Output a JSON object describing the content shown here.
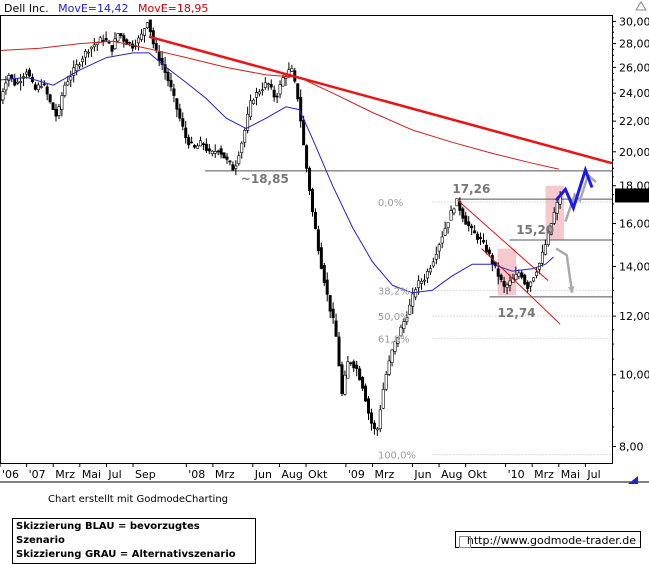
{
  "chart_data": {
    "type": "candlestick",
    "title_parts": [
      {
        "text": "Dell Inc.",
        "color": "#000000"
      },
      {
        "text": "MovE=14,42",
        "color": "#2222cc"
      },
      {
        "text": "MovE=18,95",
        "color": "#cc0000"
      }
    ],
    "x_ticks": [
      {
        "label": "'06",
        "t": 0
      },
      {
        "label": "'07",
        "t": 2
      },
      {
        "label": "Mrz",
        "t": 4
      },
      {
        "label": "Mai",
        "t": 6
      },
      {
        "label": "Jul",
        "t": 8
      },
      {
        "label": "Sep",
        "t": 10
      },
      {
        "label": "'08",
        "t": 14
      },
      {
        "label": "Mrz",
        "t": 16
      },
      {
        "label": "Jun",
        "t": 19
      },
      {
        "label": "Aug",
        "t": 21
      },
      {
        "label": "Okt",
        "t": 23
      },
      {
        "label": "'09",
        "t": 26
      },
      {
        "label": "Mrz",
        "t": 28
      },
      {
        "label": "Jun",
        "t": 31
      },
      {
        "label": "Aug",
        "t": 33
      },
      {
        "label": "Okt",
        "t": 35
      },
      {
        "label": "'10",
        "t": 38
      },
      {
        "label": "Mrz",
        "t": 40
      },
      {
        "label": "Mai",
        "t": 42
      },
      {
        "label": "Jul",
        "t": 44
      }
    ],
    "y_ticks": [
      "8,00",
      "10,00",
      "12,00",
      "14,00",
      "16,00",
      "18,00",
      "20,00",
      "22,00",
      "24,00",
      "26,00",
      "28,00",
      "30,00"
    ],
    "y_tick_values": [
      8,
      10,
      12,
      14,
      16,
      18,
      20,
      22,
      24,
      26,
      28,
      30
    ],
    "ylim": [
      7.6,
      30.6
    ],
    "y_scale": "log",
    "last_price": "17,46",
    "price_path": [
      [
        0,
        23.5
      ],
      [
        0.6,
        25.5
      ],
      [
        1.2,
        24.6
      ],
      [
        2,
        25.8
      ],
      [
        2.6,
        24.2
      ],
      [
        3.2,
        24.8
      ],
      [
        3.8,
        23.2
      ],
      [
        4.3,
        22.2
      ],
      [
        4.8,
        24.5
      ],
      [
        5.4,
        25.5
      ],
      [
        6,
        26.5
      ],
      [
        6.6,
        27.5
      ],
      [
        7.2,
        28
      ],
      [
        7.8,
        28.5
      ],
      [
        8.4,
        27.5
      ],
      [
        8.9,
        29
      ],
      [
        9.4,
        28.2
      ],
      [
        10,
        27.8
      ],
      [
        10.6,
        28.6
      ],
      [
        11.1,
        30.2
      ],
      [
        11.6,
        27.6
      ],
      [
        12.2,
        26.2
      ],
      [
        12.8,
        24.5
      ],
      [
        13.4,
        22.5
      ],
      [
        14,
        20.8
      ],
      [
        14.6,
        20.2
      ],
      [
        15.2,
        20.6
      ],
      [
        15.8,
        19.8
      ],
      [
        16.4,
        20.2
      ],
      [
        17,
        19.5
      ],
      [
        17.6,
        18.9
      ],
      [
        18.3,
        21
      ],
      [
        18.9,
        23.5
      ],
      [
        19.5,
        24.2
      ],
      [
        20.1,
        24.8
      ],
      [
        20.7,
        23.6
      ],
      [
        21.3,
        25.2
      ],
      [
        21.9,
        25.9
      ],
      [
        22.4,
        23.6
      ],
      [
        22.9,
        19.8
      ],
      [
        23.5,
        16.5
      ],
      [
        24.1,
        14.2
      ],
      [
        24.7,
        12.5
      ],
      [
        25.2,
        11.5
      ],
      [
        25.7,
        9.4
      ],
      [
        26.2,
        10.5
      ],
      [
        26.8,
        10.2
      ],
      [
        27.3,
        9.6
      ],
      [
        27.8,
        8.7
      ],
      [
        28.3,
        8.3
      ],
      [
        28.9,
        9.8
      ],
      [
        29.5,
        10.8
      ],
      [
        30.1,
        11.5
      ],
      [
        30.7,
        12.2
      ],
      [
        31.3,
        13.2
      ],
      [
        31.9,
        13.5
      ],
      [
        32.5,
        14.2
      ],
      [
        33.1,
        15.2
      ],
      [
        33.7,
        16.2
      ],
      [
        34.3,
        17.2
      ],
      [
        34.9,
        16.2
      ],
      [
        35.5,
        15.6
      ],
      [
        36.1,
        15.2
      ],
      [
        36.7,
        14.6
      ],
      [
        37.3,
        13.8
      ],
      [
        37.9,
        13.1
      ],
      [
        38.5,
        13.4
      ],
      [
        39.1,
        13.8
      ],
      [
        39.6,
        13.1
      ],
      [
        40.1,
        13.6
      ],
      [
        40.6,
        14.2
      ],
      [
        41.1,
        15.2
      ],
      [
        41.6,
        16.4
      ],
      [
        42.1,
        17.46
      ]
    ],
    "ema_short": [
      [
        0,
        25
      ],
      [
        2,
        25.2
      ],
      [
        4,
        24.6
      ],
      [
        6,
        25.8
      ],
      [
        8,
        26.8
      ],
      [
        10,
        27.2
      ],
      [
        11.2,
        27.2
      ],
      [
        12.5,
        26
      ],
      [
        14,
        24.8
      ],
      [
        15.5,
        23.6
      ],
      [
        17,
        22.2
      ],
      [
        18.5,
        21.5
      ],
      [
        20,
        22.2
      ],
      [
        21.5,
        23
      ],
      [
        22.5,
        22.8
      ],
      [
        23.5,
        20.8
      ],
      [
        25,
        18
      ],
      [
        26.5,
        15.8
      ],
      [
        28,
        14.2
      ],
      [
        29.5,
        13.2
      ],
      [
        31,
        12.9
      ],
      [
        32.5,
        13
      ],
      [
        34,
        13.6
      ],
      [
        35.5,
        14.1
      ],
      [
        37,
        14.1
      ],
      [
        38.5,
        13.8
      ],
      [
        40,
        13.9
      ],
      [
        41,
        14.1
      ],
      [
        41.6,
        14.42
      ]
    ],
    "ema_long": [
      [
        0,
        27.4
      ],
      [
        3,
        27.6
      ],
      [
        6,
        28
      ],
      [
        8.5,
        28.2
      ],
      [
        11,
        27.6
      ],
      [
        14,
        26.8
      ],
      [
        17,
        26
      ],
      [
        20,
        25.4
      ],
      [
        22.5,
        25.2
      ],
      [
        25,
        24
      ],
      [
        28,
        22.6
      ],
      [
        31,
        21.4
      ],
      [
        34,
        20.6
      ],
      [
        37,
        19.9
      ],
      [
        40,
        19.3
      ],
      [
        42,
        18.95
      ]
    ],
    "trendline_main": [
      [
        11.2,
        28.6
      ],
      [
        46,
        19.3
      ]
    ],
    "channel_upper": [
      [
        34.4,
        17.2
      ],
      [
        41.2,
        13.4
      ]
    ],
    "channel_lower": [
      [
        36.2,
        14.8
      ],
      [
        42.1,
        11.7
      ]
    ],
    "horizontal_levels": [
      {
        "y": 18.85,
        "from": 15.4,
        "to": 46,
        "label": "~18,85"
      },
      {
        "y": 17.26,
        "from": 34.4,
        "to": 46,
        "label": "17,26"
      },
      {
        "y": 15.2,
        "from": 38.3,
        "to": 46,
        "label": "15,20"
      },
      {
        "y": 12.74,
        "from": 36.8,
        "to": 46,
        "label": "12,74"
      }
    ],
    "fib_levels": [
      {
        "label": "0,0%",
        "y": 17.1
      },
      {
        "label": "38,2%",
        "y": 13.0
      },
      {
        "label": "50,0%",
        "y": 12.0
      },
      {
        "label": "61,8%",
        "y": 11.2
      },
      {
        "label": "100,0%",
        "y": 7.8
      }
    ],
    "scenario_blue": [
      [
        41.8,
        17.2
      ],
      [
        42.5,
        17.8
      ],
      [
        43.1,
        16.8
      ],
      [
        44,
        18.9
      ],
      [
        44.5,
        17.9
      ]
    ],
    "scenario_gray_1": [
      [
        42.5,
        16.1
      ],
      [
        43.2,
        17.5
      ],
      [
        43.6,
        17.2
      ],
      [
        44.2,
        18.6
      ],
      [
        44.8,
        18.2
      ]
    ],
    "scenario_gray_2": [
      [
        41.8,
        14.8
      ],
      [
        42.6,
        14.5
      ],
      [
        43,
        12.9
      ]
    ],
    "pink_zones": [
      {
        "t0": 37.4,
        "t1": 38.8,
        "y0": 12.8,
        "y1": 14.8
      },
      {
        "t0": 41,
        "t1": 42.4,
        "y0": 15.2,
        "y1": 18
      }
    ]
  },
  "credit": "Chart erstellt mit GodmodeCharting",
  "legend_lines": [
    "Skizzierung BLAU = bevorzugtes Szenario",
    "Skizzierung GRAU = Alternativszenario"
  ],
  "url": "http://www.godmode-trader.de",
  "colors": {
    "candle": "#000000",
    "ema_short": "#2222cc",
    "ema_long": "#cc2222",
    "trendline": "#ee1111",
    "channel": "#dd1111",
    "scenario_blue": "#1a1aee",
    "scenario_gray": "#aaaaaa",
    "pink_zone": "#f7c9cf",
    "level_line": "#555555"
  }
}
